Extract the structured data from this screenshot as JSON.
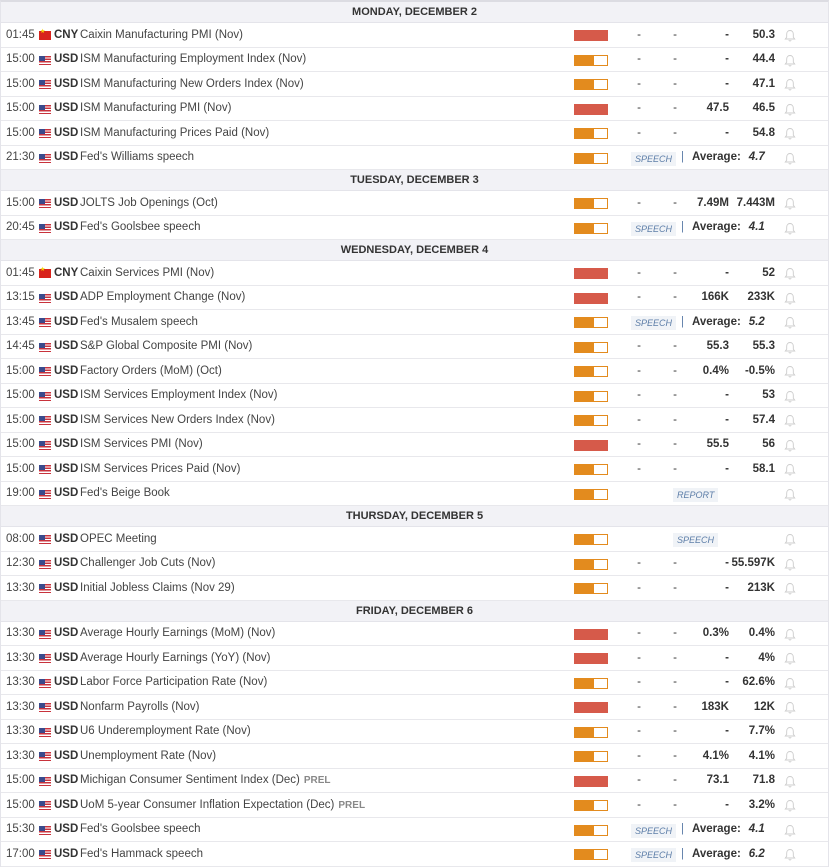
{
  "colors": {
    "high": "#d65a4a",
    "medium": "#e38b1e"
  },
  "days": [
    {
      "label": "MONDAY, DECEMBER 2",
      "events": [
        {
          "time": "01:45",
          "currency": "CNY",
          "name": "Caixin Manufacturing PMI (Nov)",
          "impact": "high",
          "actual": "-",
          "deviation": "-",
          "consensus": "-",
          "previous": "50.3"
        },
        {
          "time": "15:00",
          "currency": "USD",
          "name": "ISM Manufacturing Employment Index (Nov)",
          "impact": "medium",
          "actual": "-",
          "deviation": "-",
          "consensus": "-",
          "previous": "44.4"
        },
        {
          "time": "15:00",
          "currency": "USD",
          "name": "ISM Manufacturing New Orders Index (Nov)",
          "impact": "medium",
          "actual": "-",
          "deviation": "-",
          "consensus": "-",
          "previous": "47.1"
        },
        {
          "time": "15:00",
          "currency": "USD",
          "name": "ISM Manufacturing PMI (Nov)",
          "impact": "high",
          "actual": "-",
          "deviation": "-",
          "consensus": "47.5",
          "previous": "46.5"
        },
        {
          "time": "15:00",
          "currency": "USD",
          "name": "ISM Manufacturing Prices Paid (Nov)",
          "impact": "medium",
          "actual": "-",
          "deviation": "-",
          "consensus": "-",
          "previous": "54.8"
        },
        {
          "time": "21:30",
          "currency": "USD",
          "name": "Fed's Williams speech",
          "impact": "medium",
          "tag": "SPEECH",
          "average_label": "Average:",
          "average": "4.7"
        }
      ]
    },
    {
      "label": "TUESDAY, DECEMBER 3",
      "events": [
        {
          "time": "15:00",
          "currency": "USD",
          "name": "JOLTS Job Openings (Oct)",
          "impact": "medium",
          "actual": "-",
          "deviation": "-",
          "consensus": "7.49M",
          "previous": "7.443M"
        },
        {
          "time": "20:45",
          "currency": "USD",
          "name": "Fed's Goolsbee speech",
          "impact": "medium",
          "tag": "SPEECH",
          "average_label": "Average:",
          "average": "4.1"
        }
      ]
    },
    {
      "label": "WEDNESDAY, DECEMBER 4",
      "events": [
        {
          "time": "01:45",
          "currency": "CNY",
          "name": "Caixin Services PMI (Nov)",
          "impact": "high",
          "actual": "-",
          "deviation": "-",
          "consensus": "-",
          "previous": "52"
        },
        {
          "time": "13:15",
          "currency": "USD",
          "name": "ADP Employment Change (Nov)",
          "impact": "high",
          "actual": "-",
          "deviation": "-",
          "consensus": "166K",
          "previous": "233K"
        },
        {
          "time": "13:45",
          "currency": "USD",
          "name": "Fed's Musalem speech",
          "impact": "medium",
          "tag": "SPEECH",
          "average_label": "Average:",
          "average": "5.2"
        },
        {
          "time": "14:45",
          "currency": "USD",
          "name": "S&P Global Composite PMI (Nov)",
          "impact": "medium",
          "actual": "-",
          "deviation": "-",
          "consensus": "55.3",
          "previous": "55.3"
        },
        {
          "time": "15:00",
          "currency": "USD",
          "name": "Factory Orders (MoM) (Oct)",
          "impact": "medium",
          "actual": "-",
          "deviation": "-",
          "consensus": "0.4%",
          "previous": "-0.5%"
        },
        {
          "time": "15:00",
          "currency": "USD",
          "name": "ISM Services Employment Index (Nov)",
          "impact": "medium",
          "actual": "-",
          "deviation": "-",
          "consensus": "-",
          "previous": "53"
        },
        {
          "time": "15:00",
          "currency": "USD",
          "name": "ISM Services New Orders Index (Nov)",
          "impact": "medium",
          "actual": "-",
          "deviation": "-",
          "consensus": "-",
          "previous": "57.4"
        },
        {
          "time": "15:00",
          "currency": "USD",
          "name": "ISM Services PMI (Nov)",
          "impact": "high",
          "actual": "-",
          "deviation": "-",
          "consensus": "55.5",
          "previous": "56"
        },
        {
          "time": "15:00",
          "currency": "USD",
          "name": "ISM Services Prices Paid (Nov)",
          "impact": "medium",
          "actual": "-",
          "deviation": "-",
          "consensus": "-",
          "previous": "58.1"
        },
        {
          "time": "19:00",
          "currency": "USD",
          "name": "Fed's Beige Book",
          "impact": "medium",
          "tag": "REPORT"
        }
      ]
    },
    {
      "label": "THURSDAY, DECEMBER 5",
      "events": [
        {
          "time": "08:00",
          "currency": "USD",
          "name": "OPEC Meeting",
          "impact": "medium",
          "tag": "SPEECH"
        },
        {
          "time": "12:30",
          "currency": "USD",
          "name": "Challenger Job Cuts (Nov)",
          "impact": "medium",
          "actual": "-",
          "deviation": "-",
          "consensus": "-",
          "previous": "55.597K"
        },
        {
          "time": "13:30",
          "currency": "USD",
          "name": "Initial Jobless Claims (Nov 29)",
          "impact": "medium",
          "actual": "-",
          "deviation": "-",
          "consensus": "-",
          "previous": "213K"
        }
      ]
    },
    {
      "label": "FRIDAY, DECEMBER 6",
      "events": [
        {
          "time": "13:30",
          "currency": "USD",
          "name": "Average Hourly Earnings (MoM) (Nov)",
          "impact": "high",
          "actual": "-",
          "deviation": "-",
          "consensus": "0.3%",
          "previous": "0.4%"
        },
        {
          "time": "13:30",
          "currency": "USD",
          "name": "Average Hourly Earnings (YoY) (Nov)",
          "impact": "high",
          "actual": "-",
          "deviation": "-",
          "consensus": "-",
          "previous": "4%"
        },
        {
          "time": "13:30",
          "currency": "USD",
          "name": "Labor Force Participation Rate (Nov)",
          "impact": "medium",
          "actual": "-",
          "deviation": "-",
          "consensus": "-",
          "previous": "62.6%"
        },
        {
          "time": "13:30",
          "currency": "USD",
          "name": "Nonfarm Payrolls (Nov)",
          "impact": "high",
          "actual": "-",
          "deviation": "-",
          "consensus": "183K",
          "previous": "12K"
        },
        {
          "time": "13:30",
          "currency": "USD",
          "name": "U6 Underemployment Rate (Nov)",
          "impact": "medium",
          "actual": "-",
          "deviation": "-",
          "consensus": "-",
          "previous": "7.7%"
        },
        {
          "time": "13:30",
          "currency": "USD",
          "name": "Unemployment Rate (Nov)",
          "impact": "medium",
          "actual": "-",
          "deviation": "-",
          "consensus": "4.1%",
          "previous": "4.1%"
        },
        {
          "time": "15:00",
          "currency": "USD",
          "name": "Michigan Consumer Sentiment Index (Dec)",
          "prel": "PREL",
          "impact": "high",
          "actual": "-",
          "deviation": "-",
          "consensus": "73.1",
          "previous": "71.8"
        },
        {
          "time": "15:00",
          "currency": "USD",
          "name": "UoM 5-year Consumer Inflation Expectation (Dec)",
          "prel": "PREL",
          "impact": "medium",
          "actual": "-",
          "deviation": "-",
          "consensus": "-",
          "previous": "3.2%"
        },
        {
          "time": "15:30",
          "currency": "USD",
          "name": "Fed's Goolsbee speech",
          "impact": "medium",
          "tag": "SPEECH",
          "average_label": "Average:",
          "average": "4.1"
        },
        {
          "time": "17:00",
          "currency": "USD",
          "name": "Fed's Hammack speech",
          "impact": "medium",
          "tag": "SPEECH",
          "average_label": "Average:",
          "average": "6.2"
        }
      ]
    }
  ]
}
